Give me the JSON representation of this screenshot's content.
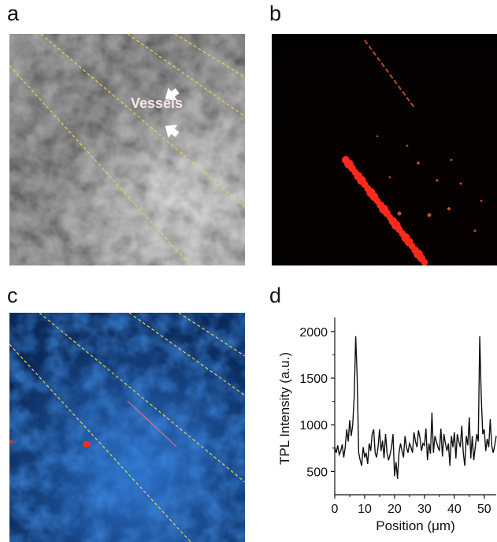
{
  "figure": {
    "panels": [
      {
        "letter": "a",
        "annotation": "Vessels"
      },
      {
        "letter": "b"
      },
      {
        "letter": "c"
      },
      {
        "letter": "d"
      }
    ]
  },
  "colors": {
    "vessel_outline": "#e8d44a",
    "tpl_red": "#ff2a1a",
    "panel_c_blue": "#1f63b8",
    "line": "#111111"
  },
  "chart_data": {
    "type": "line",
    "xlabel": "Position (μm)",
    "ylabel": "TPL Intensity (a.u.)",
    "xlim": [
      0,
      54
    ],
    "ylim": [
      250,
      2100
    ],
    "xticks": [
      0,
      10,
      20,
      30,
      40,
      50
    ],
    "yticks": [
      500,
      1000,
      1500,
      2000
    ],
    "series": [
      {
        "x": [
          0,
          0.5,
          1,
          1.5,
          2,
          2.5,
          3,
          3.5,
          4,
          4.5,
          5,
          5.5,
          6,
          6.5,
          7,
          7.5,
          8,
          8.5,
          9,
          9.5,
          10,
          10.5,
          11,
          11.5,
          12,
          12.5,
          13,
          13.5,
          14,
          14.5,
          15,
          15.5,
          16,
          16.5,
          17,
          17.5,
          18,
          18.5,
          19,
          19.5,
          20,
          20.5,
          21,
          21.5,
          22,
          22.5,
          23,
          23.5,
          24,
          24.5,
          25,
          25.5,
          26,
          26.5,
          27,
          27.5,
          28,
          28.5,
          29,
          29.5,
          30,
          30.5,
          31,
          31.5,
          32,
          32.5,
          33,
          33.5,
          34,
          34.5,
          35,
          35.5,
          36,
          36.5,
          37,
          37.5,
          38,
          38.5,
          39,
          39.5,
          40,
          40.5,
          41,
          41.5,
          42,
          42.5,
          43,
          43.5,
          44,
          44.5,
          45,
          45.5,
          46,
          46.5,
          47,
          47.5,
          48,
          48.5,
          49,
          49.5,
          50,
          50.5,
          51,
          51.5,
          52,
          52.5,
          53,
          53.5,
          54
        ],
        "values": [
          760,
          700,
          780,
          680,
          720,
          790,
          650,
          760,
          950,
          820,
          1050,
          880,
          1000,
          1300,
          1950,
          1500,
          700,
          620,
          560,
          760,
          650,
          700,
          580,
          800,
          720,
          900,
          950,
          700,
          650,
          760,
          950,
          720,
          830,
          640,
          900,
          700,
          620,
          680,
          760,
          900,
          450,
          600,
          420,
          700,
          800,
          720,
          650,
          880,
          760,
          700,
          800,
          760,
          700,
          920,
          820,
          760,
          940,
          860,
          720,
          800,
          780,
          960,
          620,
          800,
          690,
          1130,
          700,
          880,
          820,
          760,
          720,
          960,
          660,
          900,
          800,
          720,
          800,
          560,
          880,
          760,
          920,
          640,
          900,
          820,
          760,
          990,
          700,
          560,
          880,
          780,
          1080,
          640,
          880,
          620,
          760,
          900,
          820,
          1950,
          1300,
          900,
          950,
          720,
          850,
          760,
          1060,
          780,
          700,
          780,
          880
        ]
      }
    ]
  }
}
